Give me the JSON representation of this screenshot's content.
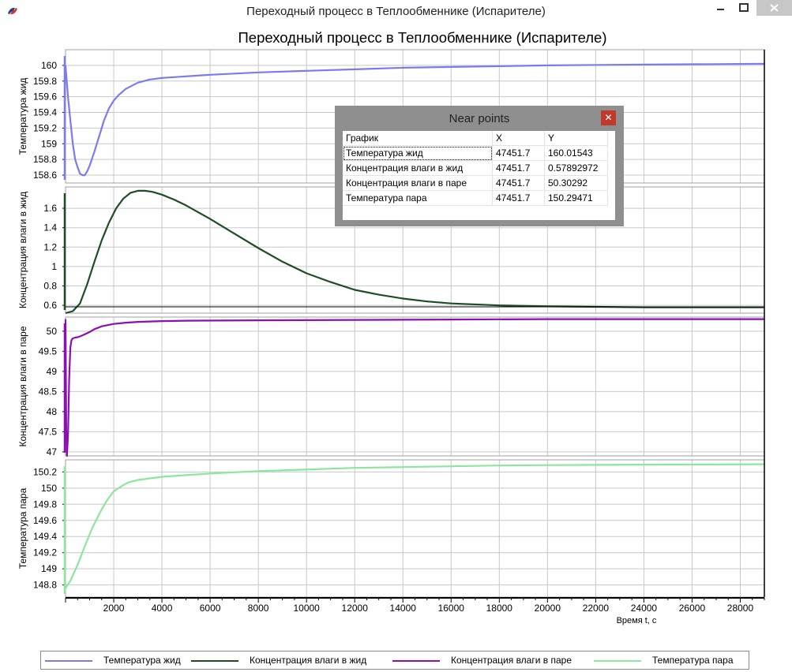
{
  "window": {
    "title": "Переходный процесс в Теплообменнике (Испарителе)",
    "icon": "app-logo-icon",
    "buttons": [
      "minimize-icon",
      "maximize-icon",
      "close-icon"
    ]
  },
  "chart_data": {
    "type": "line",
    "title": "Переходный процесс в Теплообменнике (Испарителе)",
    "xlabel": "Время t, с",
    "xlim": [
      0,
      29000
    ],
    "xticks": [
      "2000",
      "4000",
      "6000",
      "8000",
      "10000",
      "12000",
      "14000",
      "16000",
      "18000",
      "20000",
      "22000",
      "24000",
      "26000",
      "28000"
    ],
    "legend_position": "bottom",
    "grid": true,
    "panels": [
      {
        "ylabel": "Температура жид",
        "ylim": [
          158.5,
          160.2
        ],
        "yticks": [
          "158.6",
          "158.8",
          "159",
          "159.2",
          "159.4",
          "159.6",
          "159.8",
          "160"
        ],
        "series": {
          "name": "Температура жид",
          "color": "#7b7bef",
          "x": [
            0,
            100,
            200,
            300,
            400,
            500,
            600,
            700,
            800,
            900,
            1000,
            1200,
            1400,
            1600,
            1800,
            2000,
            2200,
            2500,
            3000,
            3500,
            4000,
            5000,
            6000,
            8000,
            10000,
            12000,
            14000,
            16000,
            18000,
            20000,
            24000,
            29000
          ],
          "y": [
            160.0,
            159.6,
            159.3,
            159.0,
            158.8,
            158.7,
            158.62,
            158.6,
            158.6,
            158.65,
            158.72,
            158.9,
            159.1,
            159.3,
            159.45,
            159.55,
            159.62,
            159.7,
            159.78,
            159.82,
            159.84,
            159.86,
            159.88,
            159.91,
            159.93,
            159.95,
            159.97,
            159.98,
            159.99,
            160.0,
            160.01,
            160.02
          ]
        }
      },
      {
        "ylabel": "Концентрация влаги в жид",
        "ylim": [
          0.52,
          1.82
        ],
        "yticks": [
          "0.6",
          "0.8",
          "1",
          "1.2",
          "1.4",
          "1.6"
        ],
        "series": {
          "name": "Концентрация влаги в жид",
          "color": "#1e4d24",
          "x": [
            0,
            300,
            600,
            900,
            1200,
            1500,
            1800,
            2100,
            2400,
            2700,
            3000,
            3300,
            3600,
            4000,
            4500,
            5000,
            6000,
            7000,
            8000,
            9000,
            10000,
            11000,
            12000,
            13000,
            14000,
            15000,
            16000,
            18000,
            20000,
            22000,
            24000,
            26000,
            29000
          ],
          "y": [
            0.52,
            0.54,
            0.62,
            0.82,
            1.05,
            1.27,
            1.45,
            1.6,
            1.7,
            1.76,
            1.78,
            1.78,
            1.77,
            1.74,
            1.69,
            1.63,
            1.49,
            1.34,
            1.19,
            1.05,
            0.93,
            0.84,
            0.76,
            0.71,
            0.67,
            0.64,
            0.62,
            0.6,
            0.59,
            0.585,
            0.58,
            0.58,
            0.58
          ]
        }
      },
      {
        "ylabel": "Концентрация влаги в паре",
        "ylim": [
          46.9,
          50.35
        ],
        "yticks": [
          "47",
          "47.5",
          "48",
          "48.5",
          "49",
          "49.5",
          "50"
        ],
        "series": {
          "name": "Концентрация влаги в паре",
          "color": "#8a10b0",
          "x": [
            0,
            30,
            60,
            100,
            150,
            200,
            250,
            300,
            400,
            500,
            600,
            800,
            1000,
            1200,
            1500,
            2000,
            2500,
            3000,
            4000,
            5000,
            8000,
            12000,
            16000,
            20000,
            29000
          ],
          "y": [
            50.3,
            47.5,
            46.9,
            47.4,
            48.8,
            49.6,
            49.78,
            49.82,
            49.84,
            49.85,
            49.87,
            49.92,
            49.98,
            50.05,
            50.12,
            50.18,
            50.21,
            50.23,
            50.25,
            50.26,
            50.27,
            50.28,
            50.29,
            50.3,
            50.3
          ]
        }
      },
      {
        "ylabel": "Температура пара",
        "ylim": [
          148.65,
          150.35
        ],
        "yticks": [
          "148.8",
          "149",
          "149.2",
          "149.4",
          "149.6",
          "149.8",
          "150",
          "150.2"
        ],
        "series": {
          "name": "Температура пара",
          "color": "#8ce6a0",
          "x": [
            0,
            200,
            500,
            800,
            1100,
            1400,
            1700,
            2000,
            2300,
            2600,
            3000,
            3500,
            4000,
            5000,
            6000,
            8000,
            10000,
            12000,
            14000,
            16000,
            18000,
            20000,
            24000,
            29000
          ],
          "y": [
            148.76,
            148.85,
            149.05,
            149.28,
            149.5,
            149.68,
            149.84,
            149.96,
            150.02,
            150.07,
            150.1,
            150.12,
            150.14,
            150.16,
            150.18,
            150.21,
            150.23,
            150.25,
            150.26,
            150.27,
            150.28,
            150.285,
            150.29,
            150.295
          ]
        }
      }
    ]
  },
  "near_points": {
    "title": "Near points",
    "columns": [
      "График",
      "X",
      "Y"
    ],
    "rows": [
      [
        "Температура жид",
        "47451.7",
        "160.01543"
      ],
      [
        "Концентрация влаги в жид",
        "47451.7",
        "0.57892972"
      ],
      [
        "Концентрация влаги в паре",
        "47451.7",
        "50.30292"
      ],
      [
        "Температура пара",
        "47451.7",
        "150.29471"
      ]
    ]
  },
  "legend": [
    {
      "label": "Температура жид",
      "color": "#7b7bef"
    },
    {
      "label": "Концентрация влаги в жид",
      "color": "#1e4d24"
    },
    {
      "label": "Концентрация влаги в паре",
      "color": "#8a10b0"
    },
    {
      "label": "Температура пара",
      "color": "#8ce6a0"
    }
  ]
}
